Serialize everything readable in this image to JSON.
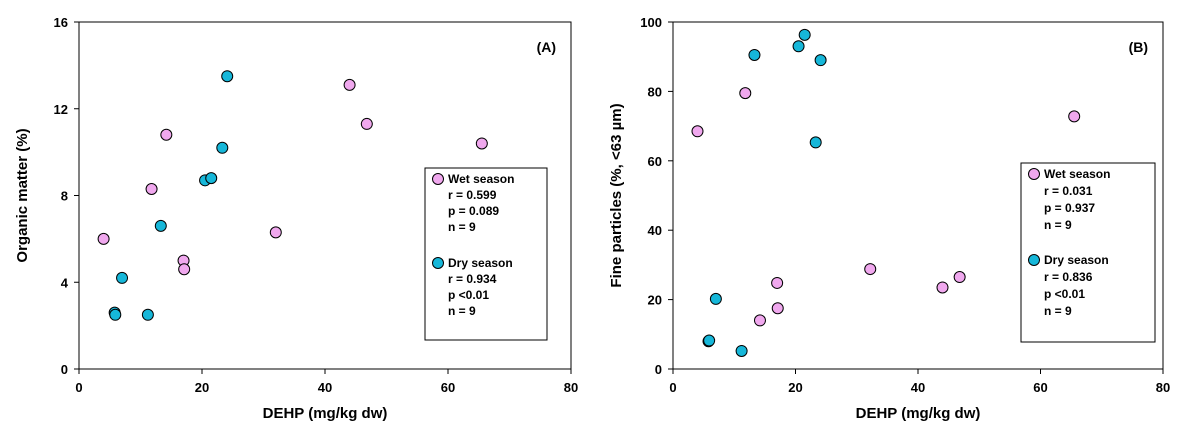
{
  "chart_data": [
    {
      "type": "scatter",
      "panel_label": "(A)",
      "xlabel": "DEHP (mg/kg dw)",
      "ylabel": "Organic matter (%)",
      "xlim": [
        0,
        80
      ],
      "ylim": [
        0,
        16
      ],
      "xticks": [
        0,
        20,
        40,
        60,
        80
      ],
      "yticks": [
        0,
        4,
        8,
        12,
        16
      ],
      "grid": false,
      "legend_position": "right",
      "series": [
        {
          "name": "Wet season",
          "color": "#f0a8ee",
          "stats": [
            "r = 0.599",
            "p = 0.089",
            "n = 9"
          ],
          "points": [
            [
              4,
              6.0
            ],
            [
              11.8,
              8.3
            ],
            [
              14.2,
              10.8
            ],
            [
              17,
              5.0
            ],
            [
              17.1,
              4.6
            ],
            [
              32,
              6.3
            ],
            [
              44,
              13.1
            ],
            [
              46.8,
              11.3
            ],
            [
              65.5,
              10.4
            ]
          ]
        },
        {
          "name": "Dry season",
          "color": "#16b7d9",
          "stats": [
            "r = 0.934",
            "p <0.01",
            "n = 9"
          ],
          "points": [
            [
              5.8,
              2.6
            ],
            [
              5.9,
              2.5
            ],
            [
              7,
              4.2
            ],
            [
              11.2,
              2.5
            ],
            [
              13.3,
              6.6
            ],
            [
              20.5,
              8.7
            ],
            [
              21.5,
              8.8
            ],
            [
              23.3,
              10.2
            ],
            [
              24.1,
              13.5
            ]
          ]
        }
      ]
    },
    {
      "type": "scatter",
      "panel_label": "(B)",
      "xlabel": "DEHP (mg/kg dw)",
      "ylabel": "Fine particles (%, <63 µm)",
      "xlim": [
        0,
        80
      ],
      "ylim": [
        0,
        100
      ],
      "xticks": [
        0,
        20,
        40,
        60,
        80
      ],
      "yticks": [
        0,
        20,
        40,
        60,
        80,
        100
      ],
      "grid": false,
      "legend_position": "right",
      "series": [
        {
          "name": "Wet season",
          "color": "#f0a8ee",
          "stats": [
            "r = 0.031",
            "p = 0.937",
            "n = 9"
          ],
          "points": [
            [
              4,
              68.5
            ],
            [
              11.8,
              79.5
            ],
            [
              14.2,
              14.0
            ],
            [
              17,
              24.8
            ],
            [
              17.1,
              17.5
            ],
            [
              32.2,
              28.8
            ],
            [
              44,
              23.5
            ],
            [
              46.8,
              26.5
            ],
            [
              65.5,
              72.8
            ]
          ]
        },
        {
          "name": "Dry season",
          "color": "#16b7d9",
          "stats": [
            "r = 0.836",
            "p <0.01",
            "n = 9"
          ],
          "points": [
            [
              5.8,
              8.0
            ],
            [
              5.9,
              8.2
            ],
            [
              7,
              20.2
            ],
            [
              11.2,
              5.2
            ],
            [
              13.3,
              90.5
            ],
            [
              20.5,
              93.0
            ],
            [
              21.5,
              96.3
            ],
            [
              23.3,
              65.3
            ],
            [
              24.1,
              89.0
            ]
          ]
        }
      ]
    }
  ]
}
